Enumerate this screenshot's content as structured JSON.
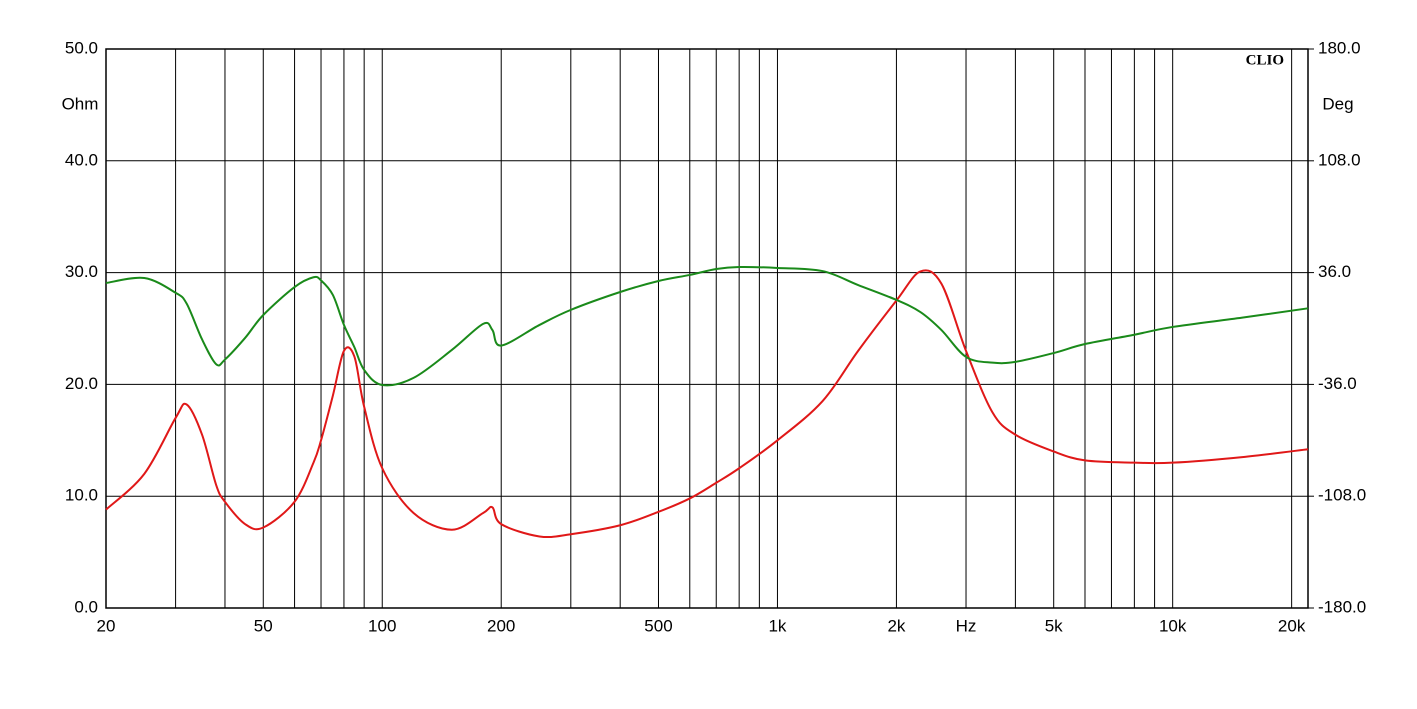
{
  "chart_data": {
    "type": "line",
    "brand": "CLIO",
    "y_label": "Ohm",
    "y2_label": "Deg",
    "log_x": true,
    "grid": true,
    "xlim": [
      20,
      22000
    ],
    "xticks": [
      20,
      50,
      100,
      200,
      500,
      {
        "value": 1000,
        "label": "1k"
      },
      {
        "value": 2000,
        "label": "2k"
      },
      {
        "value": 3000,
        "label": "Hz"
      },
      {
        "value": 5000,
        "label": "5k"
      },
      {
        "value": 10000,
        "label": "10k"
      },
      {
        "value": 20000,
        "label": "20k"
      }
    ],
    "ylim": [
      0,
      50
    ],
    "yticks": [
      {
        "value": 0,
        "label": "0.0"
      },
      {
        "value": 10,
        "label": "10.0"
      },
      {
        "value": 20,
        "label": "20.0"
      },
      {
        "value": 30,
        "label": "30.0"
      },
      {
        "value": 40,
        "label": "40.0"
      },
      {
        "value": 50,
        "label": "50.0"
      }
    ],
    "y2lim": [
      -180,
      180
    ],
    "y2ticks": [
      {
        "value": -180,
        "label": "-180.0"
      },
      {
        "value": -108,
        "label": "-108.0"
      },
      {
        "value": -36,
        "label": "-36.0"
      },
      {
        "value": 36,
        "label": "36.0"
      },
      {
        "value": 108,
        "label": "108.0"
      },
      {
        "value": 180,
        "label": "180.0"
      }
    ],
    "x": [
      20,
      25,
      30,
      32,
      35,
      38,
      40,
      45,
      50,
      60,
      67,
      70,
      75,
      80,
      85,
      90,
      100,
      120,
      150,
      180,
      190,
      200,
      250,
      300,
      400,
      500,
      600,
      700,
      800,
      1000,
      1300,
      1600,
      2000,
      2300,
      2600,
      3000,
      3500,
      4000,
      5000,
      6000,
      8000,
      10000,
      15000,
      22000
    ],
    "series": [
      {
        "color": "#e01818",
        "values": [
          8.8,
          12,
          17,
          18.2,
          15.5,
          11,
          9.5,
          7.5,
          7.2,
          9.5,
          13,
          15,
          19,
          23,
          22.5,
          18,
          12.5,
          8.5,
          7,
          8.5,
          9,
          7.5,
          6.4,
          6.6,
          7.4,
          8.6,
          9.8,
          11.2,
          12.5,
          15,
          18.5,
          23,
          27.5,
          30.1,
          29,
          23,
          17.5,
          15.5,
          14,
          13.2,
          13,
          13,
          13.5,
          14.2
        ]
      },
      {
        "color": "#1a8a1a",
        "axis": "y2",
        "values": [
          29.3,
          32.5,
          23,
          16,
          -7,
          -23,
          -20,
          -6,
          8.7,
          26.7,
          33,
          31,
          21.6,
          2.3,
          -12,
          -26.7,
          -36.4,
          -31.8,
          -13.8,
          3,
          -1,
          -11,
          2.3,
          12,
          23.5,
          30.6,
          34.5,
          38.3,
          39.6,
          39,
          37,
          28,
          18.4,
          10.6,
          -1,
          -18.3,
          -22,
          -21.5,
          -15.8,
          -10,
          -4,
          1,
          7,
          13
        ]
      }
    ]
  }
}
